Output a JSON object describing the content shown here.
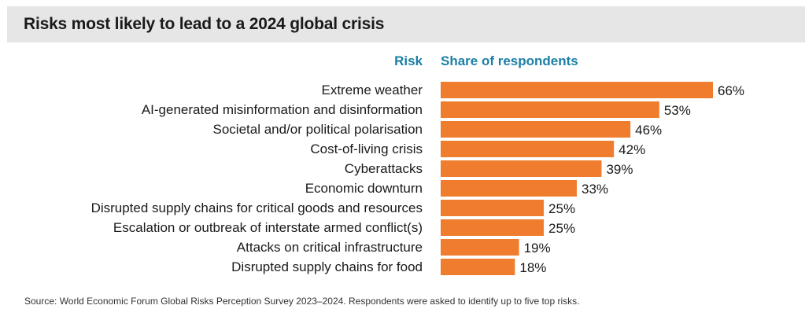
{
  "chart_data": {
    "type": "bar",
    "orientation": "horizontal",
    "title": "Risks most likely to lead to a 2024 global crisis",
    "category_header": "Risk",
    "value_header": "Share of respondents",
    "categories": [
      "Extreme weather",
      "AI-generated misinformation and disinformation",
      "Societal and/or political polarisation",
      "Cost-of-living crisis",
      "Cyberattacks",
      "Economic downturn",
      "Disrupted supply chains for critical goods and resources",
      "Escalation or outbreak of interstate armed conflict(s)",
      "Attacks on critical infrastructure",
      "Disrupted supply chains for food"
    ],
    "values": [
      66,
      53,
      46,
      42,
      39,
      33,
      25,
      25,
      19,
      18
    ],
    "value_suffix": "%",
    "bar_color": "#ef7d2d",
    "header_color": "#1b7fa6",
    "xlim": [
      0,
      66
    ]
  },
  "source": "Source: World Economic Forum Global Risks Perception Survey 2023–2024. Respondents were asked to identify up to five top risks."
}
